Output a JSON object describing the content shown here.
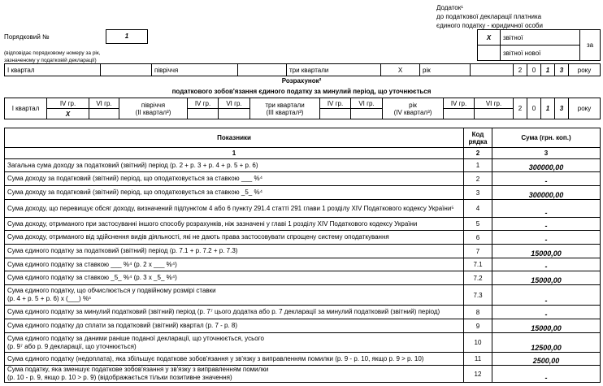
{
  "header": {
    "line1": "Додаток¹",
    "line2": "до податкової декларації платника",
    "line3": "єдиного податку - юридичної особи"
  },
  "serial": {
    "label": "Порядковий №",
    "value": "1",
    "note1": "(відповідає порядковому номеру за рік,",
    "note2": "зазначеному у податковій декларації)"
  },
  "report_type": {
    "mark": "X",
    "reporting": "звітної",
    "reporting_new": "звітної нової",
    "for": "за"
  },
  "period": {
    "q1": "I квартал",
    "half": "півріччя",
    "three_q": "три квартали",
    "three_q_mark": "X",
    "year": "рік",
    "digits": [
      "2",
      "0",
      "1",
      "3"
    ],
    "year_word": "року"
  },
  "calc": {
    "title": "Розрахунок²",
    "subtitle": "податкового зобов'язання єдиного податку за минулий період, що уточнюється",
    "q1": "I квартал",
    "g4": "IV гр.",
    "g6": "VI гр.",
    "q1_mark": "X",
    "half1": "півріччя",
    "half2": "(II квартал³)",
    "three1": "три квартали",
    "three2": "(III квартал³)",
    "year1": "рік",
    "year2": "(IV квартал³)",
    "digits": [
      "2",
      "0",
      "1",
      "3"
    ],
    "year_word": "року"
  },
  "table": {
    "headers": [
      "Показники",
      "Код рядка",
      "Сума (грн. коп.)"
    ],
    "nums": [
      "1",
      "2",
      "3"
    ],
    "rows": [
      {
        "text": "Загальна сума доходу за податковий (звітний) період (р. 2 + р. 3 + р. 4 + р. 5 + р. 6)",
        "code": "1",
        "sum": "300000,00"
      },
      {
        "text": "Сума доходу за податковий (звітний) період, що оподатковується за ставкою ___ %⁴",
        "code": "2",
        "sum": "-"
      },
      {
        "text": "Сума доходу за податковий (звітний) період, що оподатковується за ставкою _5_ %⁴",
        "code": "3",
        "sum": "300000,00"
      },
      {
        "text": "Сума доходу, що перевищує обсяг доходу, визначений підпунктом 4 або 6 пункту 291.4 статті 291 глави 1 розділу XIV Податкового кодексу України⁵",
        "code": "4",
        "sum": "-"
      },
      {
        "text": "Сума доходу, отриманого при застосуванні іншого способу розрахунків, ніж зазначені у главі 1 розділу XIV Податкового кодексу України",
        "code": "5",
        "sum": "-"
      },
      {
        "text": "Сума доходу, отриманого від здійснення видів діяльності, які не дають права застосовувати спрощену систему оподаткування",
        "code": "6",
        "sum": "-"
      },
      {
        "text": "Сума єдиного податку за податковий (звітний) період (р. 7.1 + р. 7.2 + р. 7.3)",
        "code": "7",
        "sum": "15000,00"
      },
      {
        "text": "Сума єдиного податку за ставкою ___ %⁴ (р. 2 х ___ %⁴)",
        "code": "7.1",
        "sum": "-"
      },
      {
        "text": "Сума єдиного податку за ставкою _5_ %⁴ (р. 3 х _5_ %⁴)",
        "code": "7.2",
        "sum": "15000,00"
      },
      {
        "text": "Сума єдиного податку, що обчислюється у подвійному розмірі ставки\n(р. 4 + р. 5 + р. 6) х (___) %⁶",
        "code": "7.3",
        "sum": "-"
      },
      {
        "text": "Сума єдиного податку за минулий податковий (звітний) період (р. 7⁷ цього додатка або р. 7 декларації за минулий податковий (звітний) період)",
        "code": "8",
        "sum": "-"
      },
      {
        "text": "Сума єдиного податку до сплати за податковий (звітний) квартал (р. 7 - р. 8)",
        "code": "9",
        "sum": "15000,00"
      },
      {
        "text": "Сума єдиного податку за даними раніше поданої декларації, що уточнюється, усього\n(р. 9⁷ або р. 9 декларації, що уточнюється)",
        "code": "10",
        "sum": "12500,00"
      },
      {
        "text": "Сума єдиного податку (недоплата), яка збільшує податкове зобов'язання у зв'язку з виправленням помилки (р. 9 - р. 10, якщо р. 9 > р. 10)",
        "code": "11",
        "sum": "2500,00"
      },
      {
        "text": "Сума податку, яка зменшує податкове зобов'язання у зв'язку з виправленням помилки\n(р. 10 - р. 9, якщо р. 10 > р. 9) (відображається тільки позитивне значення)",
        "code": "12",
        "sum": "-"
      }
    ]
  }
}
